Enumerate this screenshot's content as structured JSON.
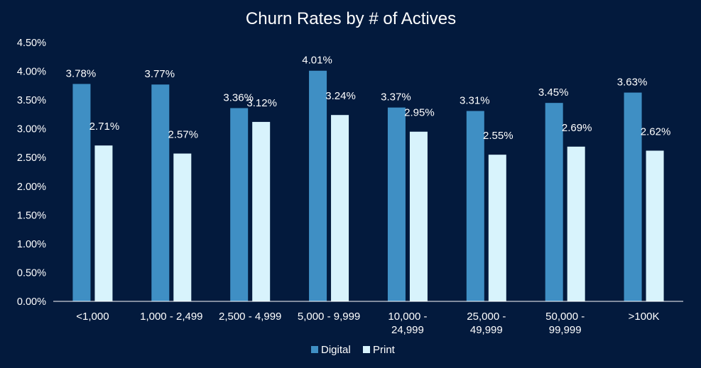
{
  "colors": {
    "background": "#031a3d",
    "digital": "#3f8fc4",
    "print": "#d8f3fc",
    "text": "#ffffff",
    "axis": "#ffffff"
  },
  "chart_data": {
    "type": "bar",
    "title": "Churn Rates by # of Actives",
    "xlabel": "",
    "ylabel": "",
    "ylim": [
      0,
      4.5
    ],
    "y_ticks": [
      "0.00%",
      "0.50%",
      "1.00%",
      "1.50%",
      "2.00%",
      "2.50%",
      "3.00%",
      "3.50%",
      "4.00%",
      "4.50%"
    ],
    "y_tick_values": [
      0,
      0.5,
      1.0,
      1.5,
      2.0,
      2.5,
      3.0,
      3.5,
      4.0,
      4.5
    ],
    "categories": [
      [
        "<1,000"
      ],
      [
        "1,000 - 2,499"
      ],
      [
        "2,500 - 4,999"
      ],
      [
        "5,000 - 9,999"
      ],
      [
        "10,000 -",
        "24,999"
      ],
      [
        "25,000 -",
        "49,999"
      ],
      [
        "50,000 -",
        "99,999"
      ],
      [
        ">100K"
      ]
    ],
    "series": [
      {
        "name": "Digital",
        "values": [
          3.78,
          3.77,
          3.36,
          4.01,
          3.37,
          3.31,
          3.45,
          3.63
        ],
        "labels": [
          "3.78%",
          "3.77%",
          "3.36%",
          "4.01%",
          "3.37%",
          "3.31%",
          "3.45%",
          "3.63%"
        ]
      },
      {
        "name": "Print",
        "values": [
          2.71,
          2.57,
          3.12,
          3.24,
          2.95,
          2.55,
          2.69,
          2.62
        ],
        "labels": [
          "2.71%",
          "2.57%",
          "3.12%",
          "3.24%",
          "2.95%",
          "2.55%",
          "2.69%",
          "2.62%"
        ]
      }
    ],
    "grid": false,
    "legend": "bottom"
  }
}
